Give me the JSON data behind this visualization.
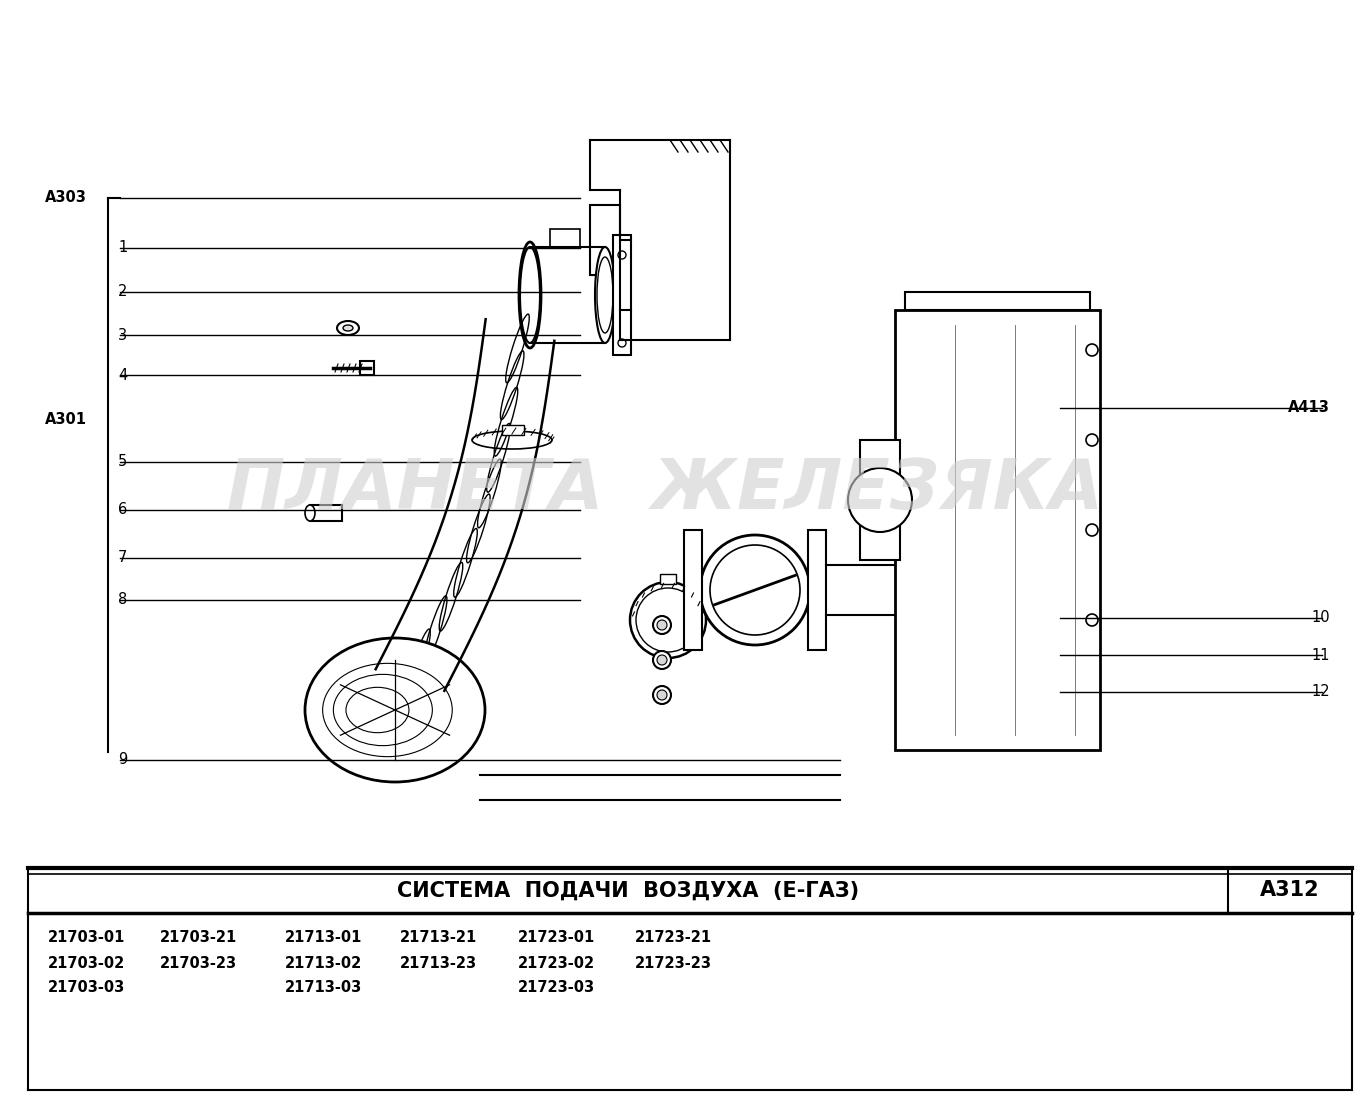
{
  "title": "СИСТЕМА  ПОДАЧИ  ВОЗДУХА  (Е-ГАЗ)",
  "code": "А312",
  "bg_color": "#ffffff",
  "line_color": "#000000",
  "watermark": "ПЛАНЕТА  ЖЕЛЕЗЯКА",
  "watermark_color": "#d0d0d0",
  "part_numbers": [
    [
      "21703-01",
      "21703-21",
      "21713-01",
      "21713-21",
      "21723-01",
      "21723-21"
    ],
    [
      "21703-02",
      "21703-23",
      "21713-02",
      "21713-23",
      "21723-02",
      "21723-23"
    ],
    [
      "21703-03",
      "",
      "21713-03",
      "",
      "21723-03",
      ""
    ]
  ],
  "left_labels": [
    [
      "А303",
      198
    ],
    [
      "1",
      248
    ],
    [
      "2",
      292
    ],
    [
      "3",
      335
    ],
    [
      "4",
      375
    ],
    [
      "А301",
      420
    ],
    [
      "5",
      462
    ],
    [
      "6",
      510
    ],
    [
      "7",
      558
    ],
    [
      "8",
      600
    ],
    [
      "9",
      760
    ]
  ],
  "right_labels": [
    [
      "А413",
      408
    ],
    [
      "10",
      618
    ],
    [
      "11",
      655
    ],
    [
      "12",
      692
    ]
  ]
}
